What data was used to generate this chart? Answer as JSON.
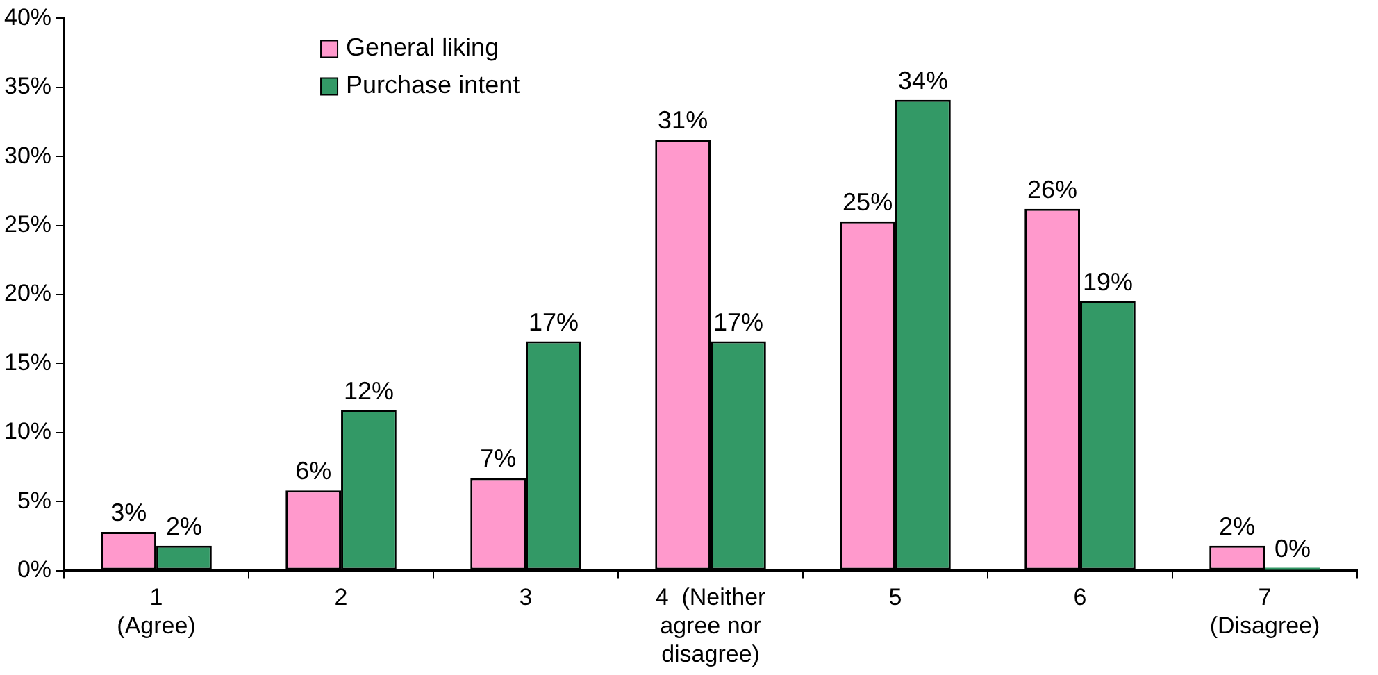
{
  "chart_data": {
    "type": "bar",
    "categories": [
      "1\n(Agree)",
      "2",
      "3",
      "4  (Neither\nagree nor\ndisagree)",
      "5",
      "6",
      "7\n(Disagree)"
    ],
    "series": [
      {
        "name": "General liking",
        "color": "#ff99cc",
        "values": [
          2.8,
          5.8,
          6.7,
          31.2,
          25.3,
          26.2,
          1.8
        ],
        "value_labels": [
          "3%",
          "6%",
          "7%",
          "31%",
          "25%",
          "26%",
          "2%"
        ]
      },
      {
        "name": "Purchase intent",
        "color": "#339966",
        "values": [
          1.8,
          11.6,
          16.6,
          16.6,
          34.1,
          19.5,
          0
        ],
        "value_labels": [
          "2%",
          "12%",
          "17%",
          "17%",
          "34%",
          "19%",
          "0%"
        ]
      }
    ],
    "ylim": [
      0,
      40
    ],
    "yticks": [
      {
        "value": 0,
        "label": "0%"
      },
      {
        "value": 5,
        "label": "5%"
      },
      {
        "value": 10,
        "label": "10%"
      },
      {
        "value": 15,
        "label": "15%"
      },
      {
        "value": 20,
        "label": "20%"
      },
      {
        "value": 25,
        "label": "25%"
      },
      {
        "value": 30,
        "label": "30%"
      },
      {
        "value": 35,
        "label": "35%"
      },
      {
        "value": 40,
        "label": "40%"
      }
    ],
    "grid": false,
    "legend": "top left"
  }
}
